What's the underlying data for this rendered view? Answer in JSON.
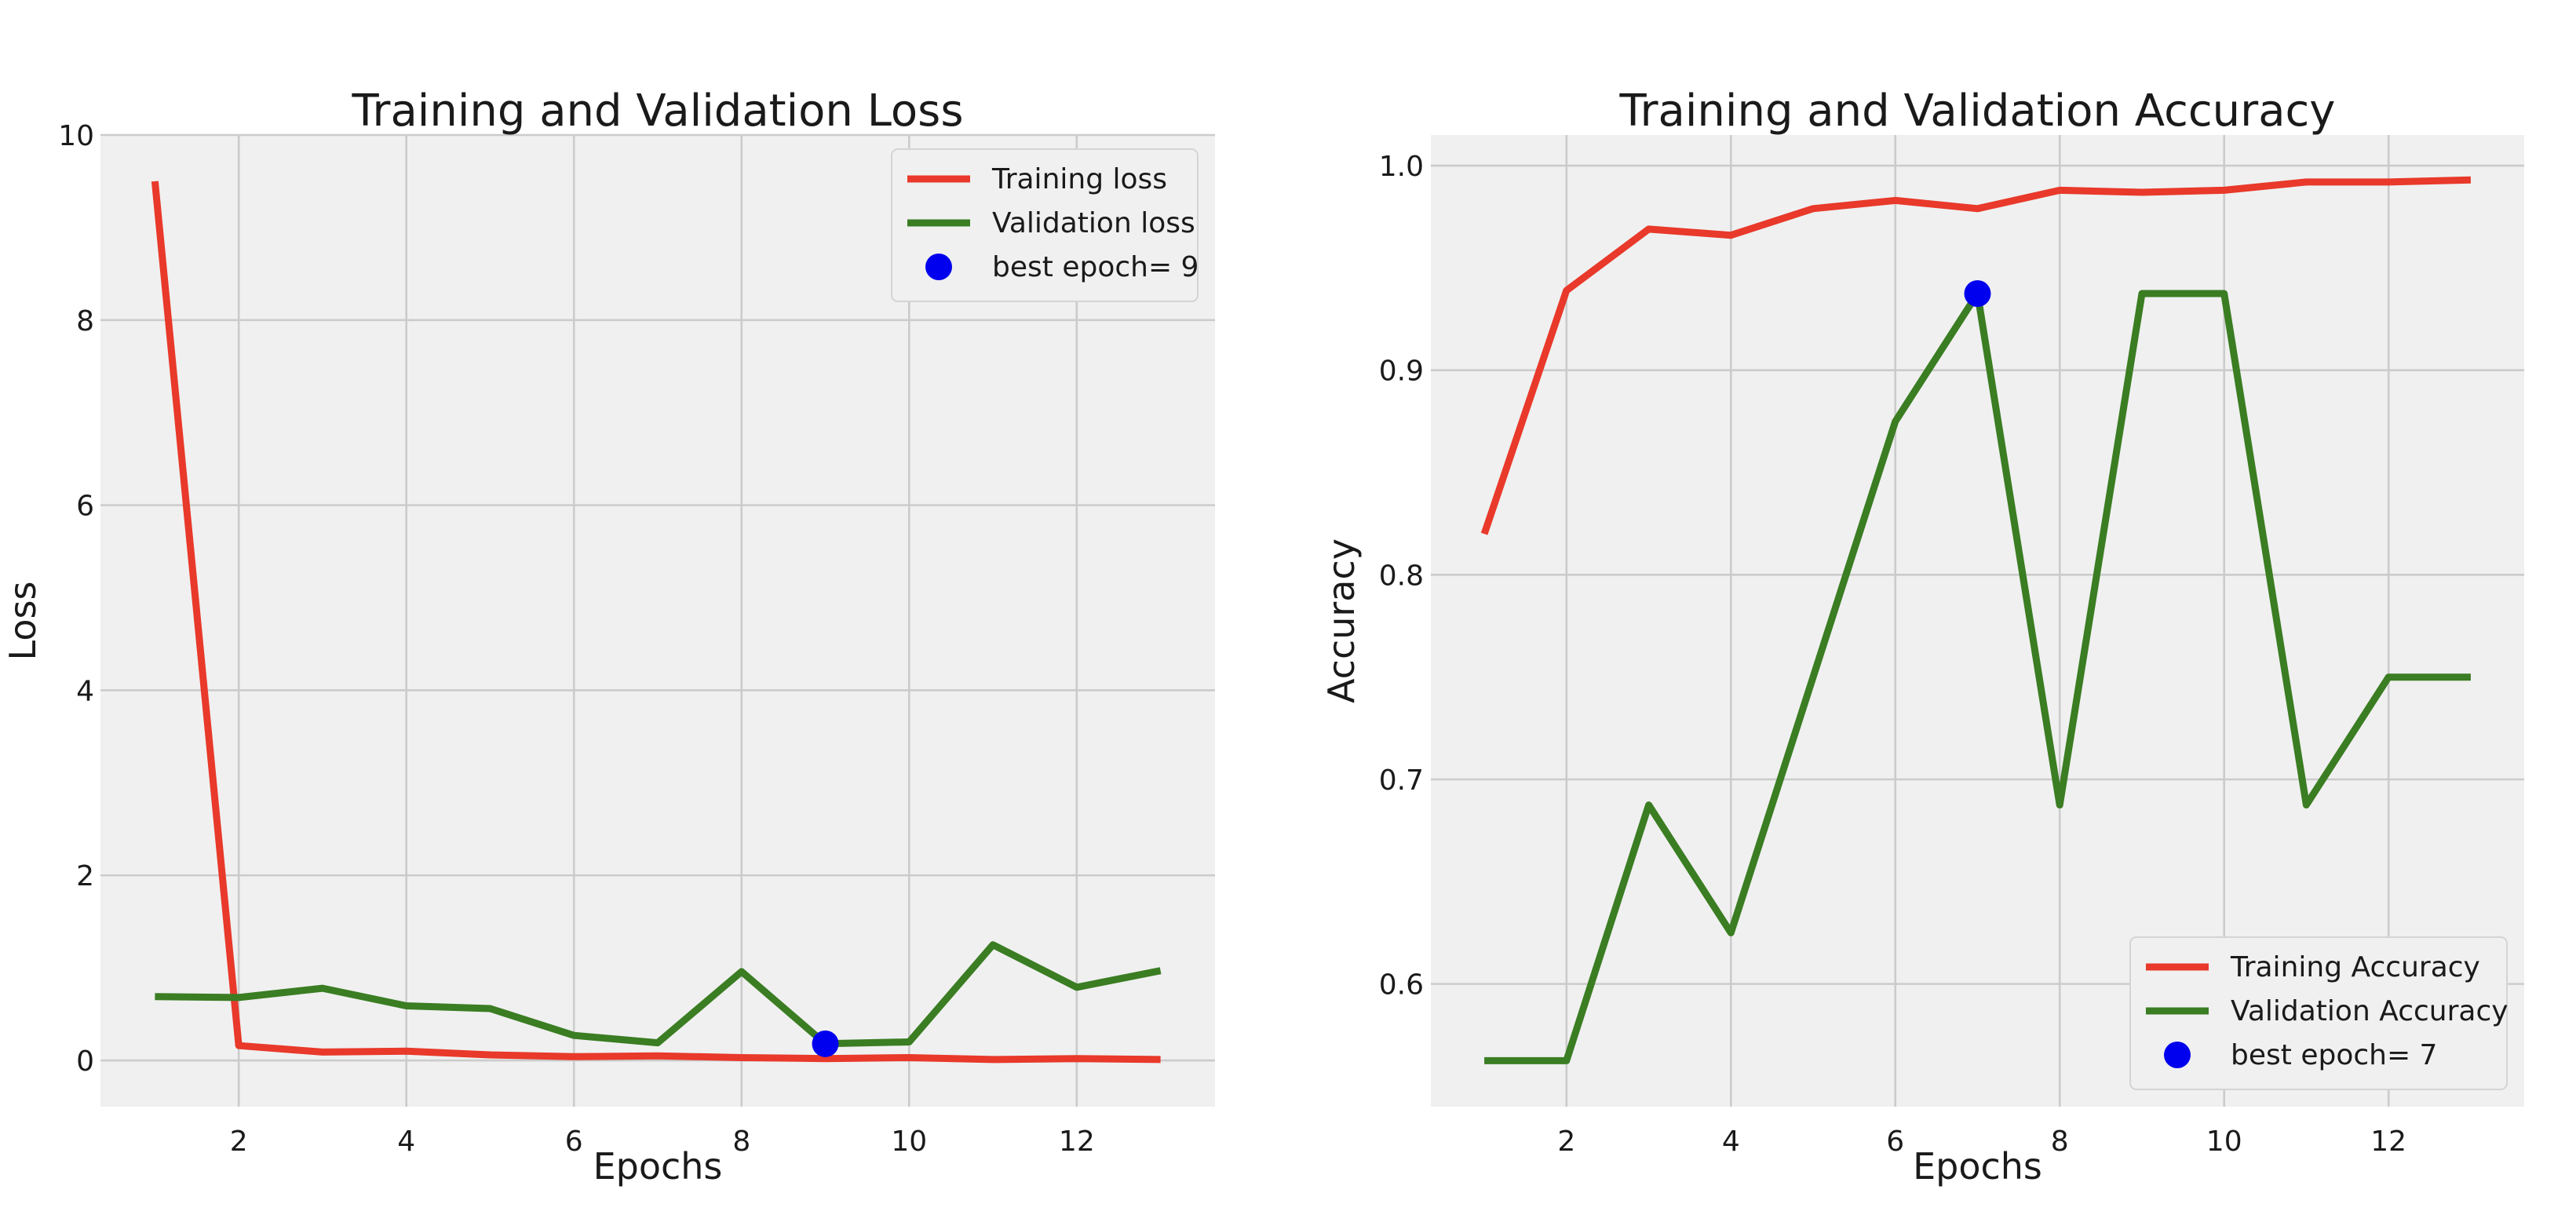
{
  "colors": {
    "training": "#e8392a",
    "validation": "#3a7d22",
    "best": "#0000ee",
    "plot_background": "#f0f0f0"
  },
  "chart_data": [
    {
      "type": "line",
      "title": "Training and Validation Loss",
      "xlabel": "Epochs",
      "ylabel": "Loss",
      "xlim": [
        0.35,
        13.65
      ],
      "ylim": [
        -0.5,
        10.0
      ],
      "xticks": [
        2,
        4,
        6,
        8,
        10,
        12
      ],
      "yticks": [
        0,
        2,
        4,
        6,
        8,
        10
      ],
      "xtick_labels": [
        "2",
        "4",
        "6",
        "8",
        "10",
        "12"
      ],
      "ytick_labels": [
        "0",
        "2",
        "4",
        "6",
        "8",
        "10"
      ],
      "grid": true,
      "legend_position": "top-right",
      "x": [
        1,
        2,
        3,
        4,
        5,
        6,
        7,
        8,
        9,
        10,
        11,
        12,
        13
      ],
      "series": [
        {
          "name": "Training loss",
          "color": "#e8392a",
          "values": [
            9.5,
            0.16,
            0.09,
            0.1,
            0.06,
            0.04,
            0.05,
            0.03,
            0.02,
            0.03,
            0.01,
            0.02,
            0.01
          ]
        },
        {
          "name": "Validation loss",
          "color": "#3a7d22",
          "values": [
            0.69,
            0.68,
            0.78,
            0.59,
            0.56,
            0.27,
            0.19,
            0.96,
            0.18,
            0.2,
            1.25,
            0.79,
            0.97
          ]
        }
      ],
      "best_point": {
        "label": "best epoch= 9",
        "x": 9,
        "y": 0.18,
        "color": "#0000ee"
      }
    },
    {
      "type": "line",
      "title": "Training and Validation Accuracy",
      "xlabel": "Epochs",
      "ylabel": "Accuracy",
      "xlim": [
        0.35,
        13.65
      ],
      "ylim": [
        0.54,
        1.015
      ],
      "xticks": [
        2,
        4,
        6,
        8,
        10,
        12
      ],
      "yticks": [
        0.6,
        0.7,
        0.8,
        0.9,
        1.0
      ],
      "xtick_labels": [
        "2",
        "4",
        "6",
        "8",
        "10",
        "12"
      ],
      "ytick_labels": [
        "0.6",
        "0.7",
        "0.8",
        "0.9",
        "1.0"
      ],
      "grid": true,
      "legend_position": "bottom-right",
      "x": [
        1,
        2,
        3,
        4,
        5,
        6,
        7,
        8,
        9,
        10,
        11,
        12,
        13
      ],
      "series": [
        {
          "name": "Training Accuracy",
          "color": "#e8392a",
          "values": [
            0.82,
            0.939,
            0.969,
            0.966,
            0.979,
            0.983,
            0.979,
            0.988,
            0.987,
            0.988,
            0.992,
            0.992,
            0.993
          ]
        },
        {
          "name": "Validation Accuracy",
          "color": "#3a7d22",
          "values": [
            0.5625,
            0.5625,
            0.6875,
            0.625,
            0.75,
            0.875,
            0.9375,
            0.6875,
            0.9375,
            0.9375,
            0.6875,
            0.75,
            0.75
          ]
        }
      ],
      "best_point": {
        "label": "best epoch= 7",
        "x": 7,
        "y": 0.9375,
        "color": "#0000ee"
      }
    }
  ]
}
